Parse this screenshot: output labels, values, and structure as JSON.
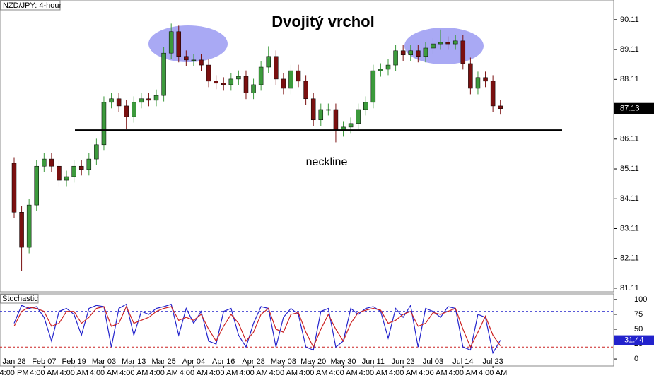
{
  "chart_data": [
    {
      "type": "candlestick",
      "title": "Dvojitý vrchol",
      "symbol": "NZD/JPY: 4-hour",
      "annotation": "neckline",
      "neckline_value": 86.41,
      "categories": [
        "Jan 28",
        null,
        null,
        null,
        "Feb 07",
        null,
        null,
        null,
        "Feb 19",
        null,
        null,
        null,
        "Mar 03",
        null,
        null,
        null,
        "Mar 13",
        null,
        null,
        null,
        "Mar 25",
        null,
        null,
        null,
        "Apr 04",
        null,
        null,
        null,
        "Apr 16",
        null,
        null,
        null,
        "Apr 28",
        null,
        null,
        null,
        "May 08",
        null,
        null,
        null,
        "May 20",
        null,
        null,
        null,
        "May 30",
        null,
        null,
        null,
        "Jun 11",
        null,
        null,
        null,
        "Jun 23",
        null,
        null,
        null,
        "Jul 03",
        null,
        null,
        null,
        "Jul 14",
        null,
        null,
        null,
        "Jul 23",
        null
      ],
      "time_labels": [
        "4:00 PM",
        null,
        null,
        null,
        "4:00 AM",
        null,
        null,
        null,
        "4:00 AM",
        null,
        null,
        null,
        "4:00 AM",
        null,
        null,
        null,
        "4:00 AM",
        null,
        null,
        null,
        "4:00 AM",
        null,
        null,
        null,
        "4:00 AM",
        null,
        null,
        null,
        "4:00 AM",
        null,
        null,
        null,
        "4:00 AM",
        null,
        null,
        null,
        "4:00 AM",
        null,
        null,
        null,
        "4:00 AM",
        null,
        null,
        null,
        "4:00 AM",
        null,
        null,
        null,
        "4:00 AM",
        null,
        null,
        null,
        "4:00 AM",
        null,
        null,
        null,
        "4:00 AM",
        null,
        null,
        null,
        "4:00 AM",
        null,
        null,
        null,
        "4:00 AM",
        null
      ],
      "open": [
        85.3,
        83.66,
        82.48,
        83.9,
        85.2,
        85.44,
        85.2,
        84.73,
        84.85,
        85.2,
        85.09,
        85.44,
        85.92,
        87.34,
        87.46,
        87.22,
        86.86,
        87.34,
        87.46,
        87.41,
        87.57,
        88.99,
        89.71,
        88.88,
        88.76,
        88.76,
        88.59,
        88.05,
        87.98,
        87.93,
        88.12,
        88.21,
        87.65,
        87.93,
        88.52,
        88.88,
        88.12,
        87.81,
        88.4,
        88.05,
        87.46,
        86.75,
        87.1,
        87.1,
        86.39,
        86.51,
        86.63,
        87.1,
        87.34,
        88.4,
        88.45,
        88.59,
        89.07,
        88.93,
        89.07,
        88.88,
        89.16,
        89.3,
        89.35,
        89.3,
        89.4,
        88.64,
        87.81,
        88.17,
        88.05,
        87.22
      ],
      "high": [
        85.5,
        83.86,
        84.1,
        85.4,
        85.64,
        85.64,
        85.4,
        85.05,
        85.4,
        85.4,
        85.64,
        86.12,
        87.54,
        87.66,
        87.66,
        87.42,
        87.54,
        87.66,
        87.66,
        87.77,
        89.19,
        89.98,
        89.91,
        89.08,
        88.96,
        88.96,
        88.79,
        88.25,
        88.18,
        88.32,
        88.41,
        88.41,
        88.13,
        88.72,
        89.22,
        89.08,
        88.32,
        88.6,
        88.6,
        88.25,
        87.66,
        87.3,
        87.3,
        87.3,
        86.71,
        86.83,
        87.3,
        87.54,
        88.6,
        88.65,
        88.79,
        89.27,
        89.27,
        89.27,
        89.27,
        89.36,
        89.5,
        89.78,
        89.55,
        89.6,
        89.6,
        88.84,
        88.37,
        88.37,
        88.25,
        87.42
      ],
      "low": [
        83.46,
        81.7,
        82.28,
        83.7,
        85.0,
        85.0,
        84.53,
        84.53,
        84.65,
        84.89,
        84.89,
        85.24,
        85.72,
        87.14,
        87.02,
        86.45,
        86.66,
        87.14,
        87.21,
        87.21,
        87.37,
        88.79,
        88.68,
        88.56,
        88.56,
        88.39,
        87.85,
        87.78,
        87.73,
        87.73,
        87.92,
        87.45,
        87.45,
        87.73,
        88.32,
        87.92,
        87.61,
        87.61,
        87.85,
        87.26,
        86.55,
        86.55,
        86.9,
        86.0,
        86.19,
        86.31,
        86.43,
        86.9,
        87.14,
        88.2,
        88.25,
        88.39,
        88.73,
        88.73,
        88.68,
        88.68,
        88.96,
        89.1,
        89.1,
        89.1,
        88.44,
        87.61,
        87.61,
        87.85,
        87.02,
        86.93
      ],
      "close": [
        83.66,
        82.48,
        83.9,
        85.2,
        85.44,
        85.2,
        84.73,
        84.85,
        85.2,
        85.09,
        85.44,
        85.92,
        87.34,
        87.46,
        87.22,
        86.86,
        87.34,
        87.46,
        87.41,
        87.57,
        88.99,
        89.71,
        88.88,
        88.76,
        88.76,
        88.59,
        88.05,
        87.98,
        87.93,
        88.12,
        88.21,
        87.65,
        87.93,
        88.52,
        88.88,
        88.12,
        87.81,
        88.4,
        88.05,
        87.46,
        86.75,
        87.1,
        87.1,
        86.39,
        86.51,
        86.63,
        87.1,
        87.34,
        88.4,
        88.45,
        88.59,
        89.07,
        88.93,
        89.07,
        88.88,
        89.16,
        89.3,
        89.35,
        89.3,
        89.4,
        88.64,
        87.81,
        88.17,
        88.05,
        87.22,
        87.13
      ],
      "up_color": "#3c9a3c",
      "down_color": "#7a1010",
      "ylim": [
        80.99,
        90.77
      ],
      "yticks": [
        81.11,
        82.11,
        83.11,
        84.11,
        85.11,
        86.11,
        87.11,
        88.11,
        89.11,
        90.11
      ]
    },
    {
      "type": "line",
      "title": "Stochastic",
      "series": [
        {
          "color": "#2222cc",
          "values": [
            60,
            90,
            85,
            88,
            70,
            30,
            80,
            85,
            75,
            40,
            85,
            90,
            88,
            20,
            85,
            92,
            40,
            80,
            75,
            85,
            88,
            92,
            40,
            85,
            60,
            80,
            30,
            25,
            80,
            85,
            40,
            20,
            60,
            88,
            85,
            20,
            70,
            85,
            75,
            20,
            15,
            80,
            85,
            20,
            30,
            85,
            75,
            85,
            88,
            80,
            35,
            85,
            70,
            90,
            20,
            85,
            80,
            70,
            88,
            85,
            20,
            15,
            75,
            70,
            10,
            31.44
          ]
        },
        {
          "color": "#cc2222",
          "values": [
            55,
            80,
            87,
            85,
            80,
            55,
            60,
            80,
            80,
            60,
            70,
            85,
            88,
            55,
            60,
            88,
            60,
            65,
            70,
            80,
            85,
            88,
            65,
            70,
            65,
            75,
            50,
            30,
            55,
            75,
            60,
            30,
            45,
            75,
            85,
            50,
            45,
            75,
            78,
            45,
            20,
            50,
            75,
            50,
            30,
            60,
            78,
            82,
            85,
            82,
            60,
            65,
            75,
            80,
            55,
            60,
            78,
            75,
            80,
            85,
            50,
            20,
            45,
            72,
            40,
            22
          ]
        }
      ],
      "levels": [
        80,
        20
      ],
      "level_colors": [
        "#2222cc",
        "#cc2222"
      ],
      "ylim": [
        -11.8,
        109.4
      ],
      "yticks": [
        0,
        25,
        50,
        75,
        100
      ]
    }
  ]
}
